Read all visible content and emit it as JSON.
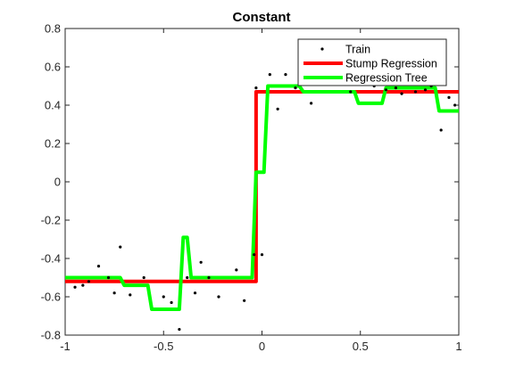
{
  "chart_data": {
    "type": "line",
    "title": "Constant",
    "xlabel": "",
    "ylabel": "",
    "xlim": [
      -1,
      1
    ],
    "ylim": [
      -0.8,
      0.8
    ],
    "xticks": [
      -1,
      -0.5,
      0,
      0.5,
      1
    ],
    "xtick_labels": [
      "-1",
      "-0.5",
      "0",
      "0.5",
      "1"
    ],
    "yticks": [
      -0.8,
      -0.6,
      -0.4,
      -0.2,
      0,
      0.2,
      0.4,
      0.6,
      0.8
    ],
    "ytick_labels": [
      "-0.8",
      "-0.6",
      "-0.4",
      "-0.2",
      "0",
      "0.2",
      "0.4",
      "0.6",
      "0.8"
    ],
    "grid": false,
    "legend_position": "top-right",
    "series": [
      {
        "name": "Train",
        "kind": "scatter",
        "color": "#000000",
        "x": [
          -0.95,
          -0.91,
          -0.88,
          -0.83,
          -0.78,
          -0.75,
          -0.72,
          -0.67,
          -0.6,
          -0.5,
          -0.46,
          -0.42,
          -0.38,
          -0.34,
          -0.31,
          -0.27,
          -0.22,
          -0.13,
          -0.09,
          -0.04,
          -0.03,
          0.0,
          0.04,
          0.08,
          0.12,
          0.17,
          0.25,
          0.35,
          0.45,
          0.57,
          0.63,
          0.68,
          0.71,
          0.78,
          0.83,
          0.86,
          0.91,
          0.95,
          0.98
        ],
        "y": [
          -0.55,
          -0.54,
          -0.52,
          -0.44,
          -0.5,
          -0.58,
          -0.34,
          -0.59,
          -0.5,
          -0.6,
          -0.63,
          -0.77,
          -0.5,
          -0.58,
          -0.42,
          -0.5,
          -0.6,
          -0.46,
          -0.62,
          -0.38,
          0.49,
          -0.38,
          0.56,
          0.38,
          0.56,
          0.49,
          0.41,
          0.55,
          0.47,
          0.5,
          0.48,
          0.49,
          0.46,
          0.47,
          0.48,
          0.5,
          0.27,
          0.44,
          0.4
        ]
      },
      {
        "name": "Stump Regression",
        "kind": "line",
        "color": "#ff0000",
        "x": [
          -1,
          -0.03,
          -0.03,
          1
        ],
        "y": [
          -0.52,
          -0.52,
          0.47,
          0.47
        ]
      },
      {
        "name": "Regression Tree",
        "kind": "line",
        "color": "#00ff00",
        "x": [
          -1,
          -0.72,
          -0.7,
          -0.58,
          -0.56,
          -0.42,
          -0.4,
          -0.38,
          -0.36,
          -0.34,
          -0.05,
          -0.03,
          -0.01,
          0.01,
          0.03,
          0.05,
          0.19,
          0.21,
          0.47,
          0.49,
          0.61,
          0.63,
          0.88,
          0.9,
          1
        ],
        "y": [
          -0.5,
          -0.5,
          -0.54,
          -0.54,
          -0.665,
          -0.665,
          -0.29,
          -0.29,
          -0.5,
          -0.5,
          -0.5,
          0.05,
          0.05,
          0.05,
          0.5,
          0.5,
          0.5,
          0.47,
          0.47,
          0.41,
          0.41,
          0.49,
          0.49,
          0.37,
          0.37
        ]
      }
    ]
  }
}
